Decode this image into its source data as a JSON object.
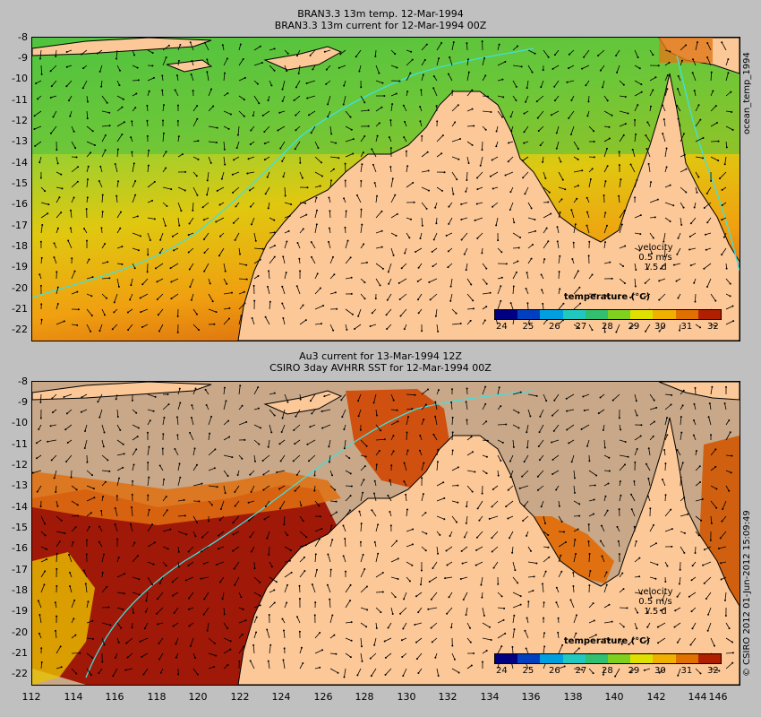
{
  "top_panel": {
    "title_line1": "BRAN3.3 13m temp. 12-Mar-1994",
    "title_line2": "BRAN3.3 13m current for 12-Mar-1994 00Z",
    "side_label": "ocean_temp_1994",
    "velocity": {
      "label": "velocity",
      "scale": "0.5 m/s",
      "period": "1.5 d"
    }
  },
  "bottom_panel": {
    "title_line1": "Au3 current for 13-Mar-1994 12Z",
    "title_line2": "CSIRO 3day AVHRR SST for 12-Mar-1994 00Z",
    "side_label": "© CSIRO 2012  01-Jun-2012 15:09:49",
    "velocity": {
      "label": "velocity",
      "scale": "0.5 m/s",
      "period": "1.5 d"
    }
  },
  "colorbar": {
    "title": "temperature (°C)",
    "ticks": [
      "24",
      "25",
      "26",
      "27",
      "28",
      "29",
      "30",
      "31",
      "32"
    ],
    "colors": [
      "#000080",
      "#0040c0",
      "#00a0e0",
      "#20c8c0",
      "#30c070",
      "#80d020",
      "#e0e000",
      "#f0b000",
      "#e07000",
      "#b02000"
    ]
  },
  "axes": {
    "y_ticks": [
      "-8",
      "-9",
      "-10",
      "-11",
      "-12",
      "-13",
      "-14",
      "-15",
      "-16",
      "-17",
      "-18",
      "-19",
      "-20",
      "-21",
      "-22"
    ],
    "x_ticks": [
      "112",
      "114",
      "116",
      "118",
      "120",
      "122",
      "124",
      "126",
      "128",
      "130",
      "132",
      "134",
      "136",
      "138",
      "140",
      "142",
      "144",
      "146"
    ]
  },
  "colors": {
    "land": "#fcc898",
    "no_data": "#c8a888",
    "current_line": "#40e0e0"
  }
}
